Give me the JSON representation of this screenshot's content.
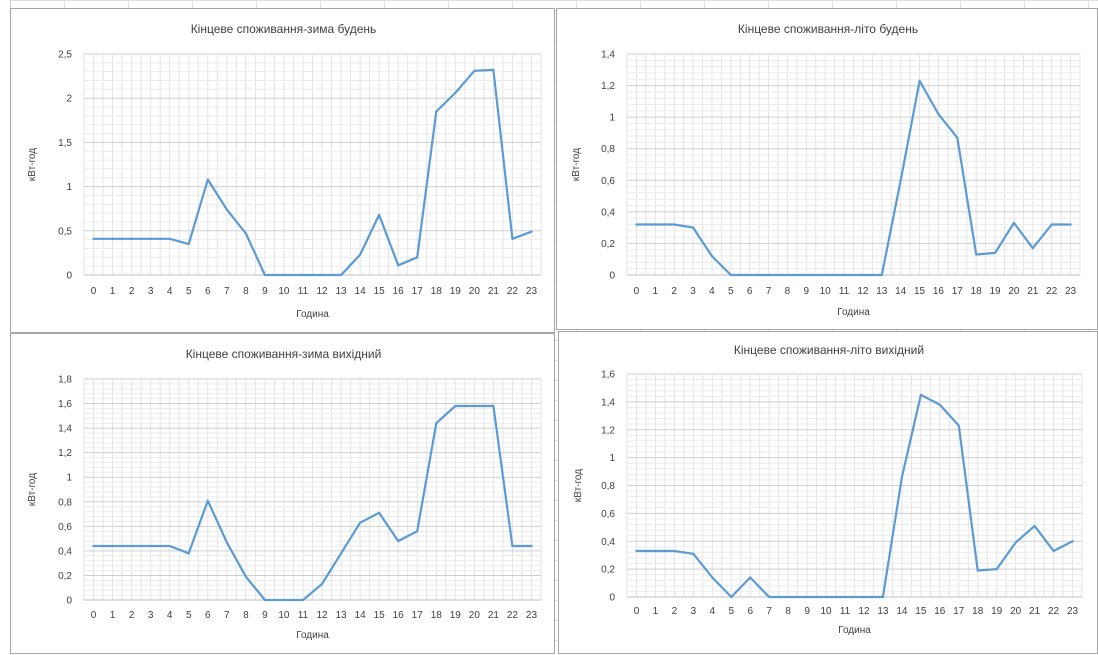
{
  "chart_data": [
    {
      "type": "line",
      "title": "Кінцеве споживання-зима будень",
      "xlabel": "Година",
      "ylabel": "кВт-год",
      "categories": [
        "0",
        "1",
        "2",
        "3",
        "4",
        "5",
        "6",
        "7",
        "8",
        "9",
        "10",
        "11",
        "12",
        "13",
        "14",
        "15",
        "16",
        "17",
        "18",
        "19",
        "20",
        "21",
        "22",
        "23"
      ],
      "values": [
        0.41,
        0.41,
        0.41,
        0.41,
        0.41,
        0.35,
        1.08,
        0.74,
        0.47,
        0,
        0,
        0,
        0,
        0,
        0.23,
        0.68,
        0.11,
        0.2,
        1.85,
        2.06,
        2.31,
        2.32,
        0.41,
        0.49
      ],
      "ylim": [
        0,
        2.5
      ],
      "yticks": [
        "0",
        "0,5",
        "1",
        "1,5",
        "2",
        "2,5"
      ],
      "grid": true,
      "color": "#5b9bd5"
    },
    {
      "type": "line",
      "title": "Кінцеве споживання-літо будень",
      "xlabel": "Година",
      "ylabel": "кВт-год",
      "categories": [
        "0",
        "1",
        "2",
        "3",
        "4",
        "5",
        "6",
        "7",
        "8",
        "9",
        "10",
        "11",
        "12",
        "13",
        "14",
        "15",
        "16",
        "17",
        "18",
        "19",
        "20",
        "21",
        "22",
        "23"
      ],
      "values": [
        0.32,
        0.32,
        0.32,
        0.3,
        0.12,
        0,
        0,
        0,
        0,
        0,
        0,
        0,
        0,
        0,
        0.6,
        1.23,
        1.02,
        0.87,
        0.13,
        0.14,
        0.33,
        0.17,
        0.32,
        0.32
      ],
      "ylim": [
        0,
        1.4
      ],
      "yticks": [
        "0",
        "0,2",
        "0,4",
        "0,6",
        "0,8",
        "1",
        "1,2",
        "1,4"
      ],
      "grid": true,
      "color": "#5b9bd5"
    },
    {
      "type": "line",
      "title": "Кінцеве споживання-зима вихідний",
      "xlabel": "Година",
      "ylabel": "кВт-год",
      "categories": [
        "0",
        "1",
        "2",
        "3",
        "4",
        "5",
        "6",
        "7",
        "8",
        "9",
        "10",
        "11",
        "12",
        "13",
        "14",
        "15",
        "16",
        "17",
        "18",
        "19",
        "20",
        "21",
        "22",
        "23"
      ],
      "values": [
        0.44,
        0.44,
        0.44,
        0.44,
        0.44,
        0.38,
        0.81,
        0.47,
        0.19,
        0,
        0,
        0,
        0.13,
        0.38,
        0.63,
        0.71,
        0.48,
        0.56,
        1.44,
        1.58,
        1.58,
        1.58,
        0.44,
        0.44
      ],
      "ylim": [
        0,
        1.8
      ],
      "yticks": [
        "0",
        "0,2",
        "0,4",
        "0,6",
        "0,8",
        "1",
        "1,2",
        "1,4",
        "1,6",
        "1,8"
      ],
      "grid": true,
      "color": "#5b9bd5"
    },
    {
      "type": "line",
      "title": "Кінцеве споживання-літо вихідний",
      "xlabel": "Година",
      "ylabel": "кВт-год",
      "categories": [
        "0",
        "1",
        "2",
        "3",
        "4",
        "5",
        "6",
        "7",
        "8",
        "9",
        "10",
        "11",
        "12",
        "13",
        "14",
        "15",
        "16",
        "17",
        "18",
        "19",
        "20",
        "21",
        "22",
        "23"
      ],
      "values": [
        0.33,
        0.33,
        0.33,
        0.31,
        0.14,
        0,
        0.14,
        0,
        0,
        0,
        0,
        0,
        0,
        0,
        0.86,
        1.45,
        1.38,
        1.23,
        0.19,
        0.2,
        0.39,
        0.51,
        0.33,
        0.4
      ],
      "ylim": [
        0,
        1.6
      ],
      "yticks": [
        "0",
        "0,2",
        "0,4",
        "0,6",
        "0,8",
        "1",
        "1,2",
        "1,4",
        "1,6"
      ],
      "grid": true,
      "color": "#5b9bd5"
    }
  ]
}
